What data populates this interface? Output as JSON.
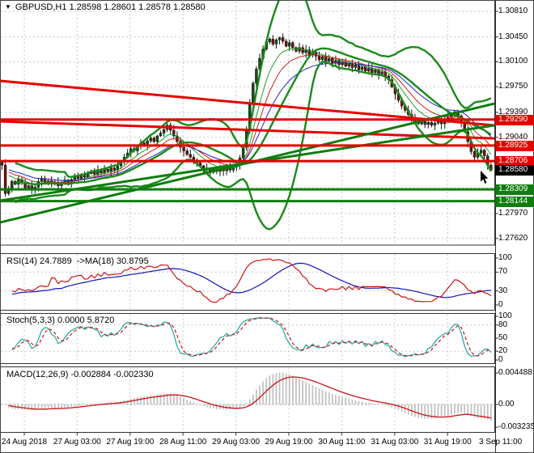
{
  "title": {
    "dropdown_icon": "▼",
    "symbol_period": "GBPUSD,H1",
    "ohlc": "1.28598 1.28601 1.28578 1.28580"
  },
  "chart_data": {
    "type": "candlestick",
    "symbol": "GBPUSD",
    "period": "H1",
    "current_price": "1.28580",
    "price_axis": {
      "ticks": [
        {
          "label": "1.30810",
          "price": 1.3081
        },
        {
          "label": "1.30450",
          "price": 1.3045
        },
        {
          "label": "1.30100",
          "price": 1.301
        },
        {
          "label": "1.29750",
          "price": 1.2975
        },
        {
          "label": "1.29390",
          "price": 1.2939
        },
        {
          "label": "1.29040",
          "price": 1.2904
        },
        {
          "label": "1.27970",
          "price": 1.2797
        },
        {
          "label": "1.27620",
          "price": 1.2762
        }
      ],
      "grid_prices": [
        1.3081,
        1.3045,
        1.301,
        1.2975,
        1.2939,
        1.2904,
        1.2869,
        1.2833,
        1.2797,
        1.2762
      ]
    },
    "badges": [
      {
        "label": "1.29290",
        "price": 1.2929,
        "type": "resistance",
        "color": "#e60000"
      },
      {
        "label": "1.28925",
        "price": 1.28925,
        "type": "resistance",
        "color": "#e60000"
      },
      {
        "label": "1.28706",
        "price": 1.28706,
        "type": "resistance",
        "color": "#e60000"
      },
      {
        "label": "1.28580",
        "price": 1.2858,
        "type": "current-price",
        "color": "#000000"
      },
      {
        "label": "1.28309",
        "price": 1.28309,
        "type": "support",
        "color": "#0f7d0f"
      },
      {
        "label": "1.28144",
        "price": 1.28144,
        "type": "support",
        "color": "#0f7d0f"
      }
    ],
    "levels": {
      "resistance": {
        "color": "#e60000",
        "prices": [
          1.2929,
          1.28925,
          1.28706
        ]
      },
      "support": {
        "color": "#0f7d0f",
        "prices": [
          1.28309,
          1.28144
        ]
      }
    },
    "trendlines": [
      {
        "color": "#e60000",
        "start_price": 1.29833,
        "end_price": 1.29208
      },
      {
        "color": "#e60000",
        "start_price": 1.29264,
        "end_price": 1.29025
      },
      {
        "color": "#0f7d0f",
        "start_price": 1.28151,
        "end_price": 1.29208
      },
      {
        "color": "#0f7d0f",
        "start_price": 1.27844,
        "end_price": 1.29514
      }
    ],
    "time_labels": [
      "24 Aug 2018",
      "27 Aug 03:00",
      "27 Aug 19:00",
      "28 Aug 11:00",
      "29 Aug 03:00",
      "29 Aug 19:00",
      "30 Aug 11:00",
      "31 Aug 03:00",
      "31 Aug 19:00",
      "3 Sep 11:00"
    ],
    "closes": [
      1.2865,
      1.2825,
      1.283,
      1.2842,
      1.2838,
      1.2845,
      1.284,
      1.2833,
      1.2836,
      1.283,
      1.2834,
      1.2842,
      1.2846,
      1.284,
      1.2843,
      1.2838,
      1.2841,
      1.2836,
      1.284,
      1.2844,
      1.284,
      1.2845,
      1.285,
      1.2846,
      1.2851,
      1.2848,
      1.2853,
      1.2856,
      1.2852,
      1.2857,
      1.2854,
      1.2859,
      1.2856,
      1.2861,
      1.2858,
      1.2864,
      1.287,
      1.2876,
      1.2882,
      1.2888,
      1.2885,
      1.2892,
      1.2896,
      1.2893,
      1.2899,
      1.2903,
      1.2898,
      1.2906,
      1.291,
      1.2915,
      1.2921,
      1.2914,
      1.2906,
      1.2898,
      1.289,
      1.2885,
      1.288,
      1.2876,
      1.2872,
      1.2868,
      1.2864,
      1.2861,
      1.2858,
      1.2855,
      1.2859,
      1.2856,
      1.286,
      1.2857,
      1.2861,
      1.2858,
      1.2862,
      1.2866,
      1.2875,
      1.289,
      1.2915,
      1.295,
      1.298,
      1.3,
      1.3015,
      1.3028,
      1.3038,
      1.3042,
      1.3035,
      1.3041,
      1.3044,
      1.3039,
      1.3032,
      1.3037,
      1.303,
      1.3025,
      1.303,
      1.3023,
      1.3027,
      1.302,
      1.3024,
      1.3018,
      1.3013,
      1.3017,
      1.3011,
      1.3015,
      1.3008,
      1.3012,
      1.3006,
      1.301,
      1.3004,
      1.3008,
      1.3002,
      1.3006,
      1.2999,
      1.3003,
      1.2997,
      1.3001,
      1.2995,
      1.2999,
      1.2993,
      1.2996,
      1.299,
      1.2985,
      1.2975,
      1.2965,
      1.2956,
      1.2948,
      1.2942,
      1.2936,
      1.2931,
      1.2927,
      1.2923,
      1.2926,
      1.2922,
      1.2925,
      1.2921,
      1.2924,
      1.2927,
      1.2923,
      1.2928,
      1.2932,
      1.2936,
      1.294,
      1.2934,
      1.2924,
      1.2912,
      1.2898,
      1.2884,
      1.2876,
      1.2882,
      1.2886,
      1.2878,
      1.2865,
      1.2858
    ],
    "bollinger": {
      "period": 20,
      "deviation": 2,
      "color": "#1a8a1a"
    },
    "moving_averages": [
      {
        "period": 8,
        "color": "#1fa11f"
      },
      {
        "period": 13,
        "color": "#d02020"
      },
      {
        "period": 21,
        "color": "#2424cc"
      }
    ],
    "indicators": {
      "rsi": {
        "label": "RSI(14) 24.7889  ->MA(18) 30.8795",
        "period": 14,
        "ma_period": 18,
        "value": "24.7889",
        "ma_value": "30.8795",
        "line_color": "#cc1414",
        "ma_color": "#1414bb",
        "ticks": [
          {
            "label": "100",
            "value": 100
          },
          {
            "label": "70",
            "value": 70
          },
          {
            "label": "30",
            "value": 30
          },
          {
            "label": "0",
            "value": 0
          }
        ],
        "grid_levels": [
          70,
          30
        ]
      },
      "stoch": {
        "label": "Stoch(5,3,3) 0.0000 5.8720",
        "value": "0.0000",
        "signal_value": "5.8720",
        "k_color": "#2aada5",
        "d_color": "#cc1414",
        "ticks": [
          {
            "label": "100",
            "value": 100
          },
          {
            "label": "80",
            "value": 80
          },
          {
            "label": "50",
            "value": 50
          },
          {
            "label": "20",
            "value": 20
          },
          {
            "label": "0",
            "value": 0
          }
        ],
        "grid_levels": [
          80,
          20
        ]
      },
      "macd": {
        "label": "MACD(12,26,9) -0.002884 -0.002330",
        "value": "-0.002884",
        "signal_value": "-0.002330",
        "hist_color": "#c2c2c2",
        "signal_color": "#cc1414",
        "ticks": [
          {
            "label": "0.004488",
            "value": 0.004488
          },
          {
            "label": "0.00",
            "value": 0
          },
          {
            "label": "-0.003235",
            "value": -0.003235
          }
        ]
      }
    },
    "candle_colors": {
      "up": "#174a17",
      "down": "#6f1212",
      "wick": "#111111"
    },
    "grid_color": "#c9c9c9"
  }
}
